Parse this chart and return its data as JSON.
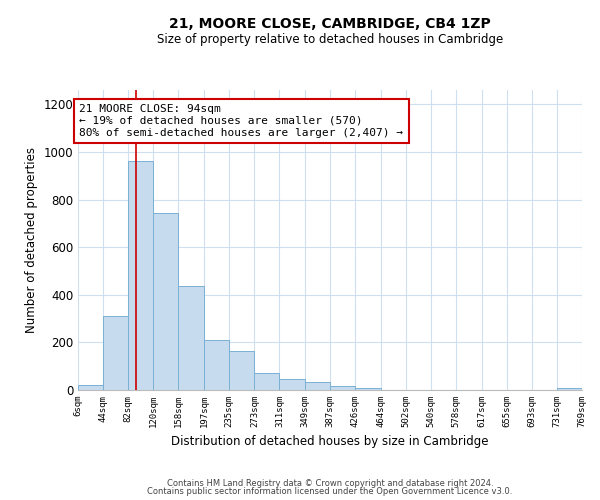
{
  "title": "21, MOORE CLOSE, CAMBRIDGE, CB4 1ZP",
  "subtitle": "Size of property relative to detached houses in Cambridge",
  "xlabel": "Distribution of detached houses by size in Cambridge",
  "ylabel": "Number of detached properties",
  "bar_color": "#c6dcee",
  "bar_edge_color": "#7ab0d4",
  "vline_x": 94,
  "vline_color": "#cc0000",
  "bin_edges": [
    6,
    44,
    82,
    120,
    158,
    197,
    235,
    273,
    311,
    349,
    387,
    426,
    464,
    502,
    540,
    578,
    617,
    655,
    693,
    731,
    769
  ],
  "bar_heights": [
    20,
    310,
    960,
    745,
    435,
    210,
    165,
    70,
    47,
    32,
    18,
    10,
    0,
    0,
    0,
    0,
    0,
    0,
    0,
    7
  ],
  "tick_labels": [
    "6sqm",
    "44sqm",
    "82sqm",
    "120sqm",
    "158sqm",
    "197sqm",
    "235sqm",
    "273sqm",
    "311sqm",
    "349sqm",
    "387sqm",
    "426sqm",
    "464sqm",
    "502sqm",
    "540sqm",
    "578sqm",
    "617sqm",
    "655sqm",
    "693sqm",
    "731sqm",
    "769sqm"
  ],
  "annotation_title": "21 MOORE CLOSE: 94sqm",
  "annotation_line1": "← 19% of detached houses are smaller (570)",
  "annotation_line2": "80% of semi-detached houses are larger (2,407) →",
  "footer_line1": "Contains HM Land Registry data © Crown copyright and database right 2024.",
  "footer_line2": "Contains public sector information licensed under the Open Government Licence v3.0.",
  "ylim": [
    0,
    1260
  ],
  "yticks": [
    0,
    200,
    400,
    600,
    800,
    1000,
    1200
  ],
  "bg_color": "#ffffff",
  "grid_color": "#d0dff0",
  "box_edge_color": "#cc0000",
  "figsize": [
    6.0,
    5.0
  ],
  "dpi": 100
}
